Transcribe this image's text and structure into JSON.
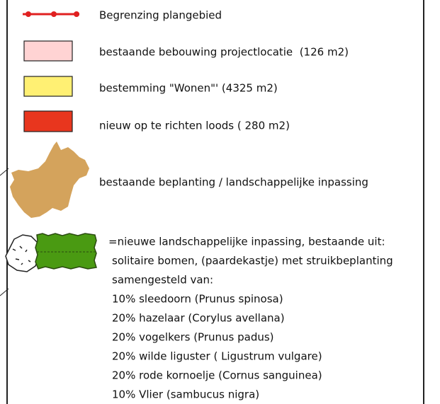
{
  "legend": {
    "items": [
      {
        "label": "Begrenzing plangebied"
      },
      {
        "label": "bestaande bebouwing projectlocatie  (126 m2)"
      },
      {
        "label": "bestemming \"Wonen\"' (4325 m2)"
      },
      {
        "label": "nieuw op te richten loods ( 280 m2)"
      },
      {
        "label": "bestaande beplanting / landschappelijke inpassing"
      },
      {
        "lines": [
          "=nieuwe landschappelijke inpassing, bestaande uit:",
          "solitaire bomen, (paardekastje) met struikbeplanting",
          "samengesteld van:",
          "10% sleedoorn (Prunus spinosa)",
          "20% hazelaar (Corylus avellana)",
          "20% vogelkers (Prunus padus)",
          "20% wilde liguster ( Ligustrum vulgare)",
          "20% rode kornoelje (Cornus sanguinea)",
          "10% Vlier (sambucus nigra)"
        ]
      }
    ]
  }
}
